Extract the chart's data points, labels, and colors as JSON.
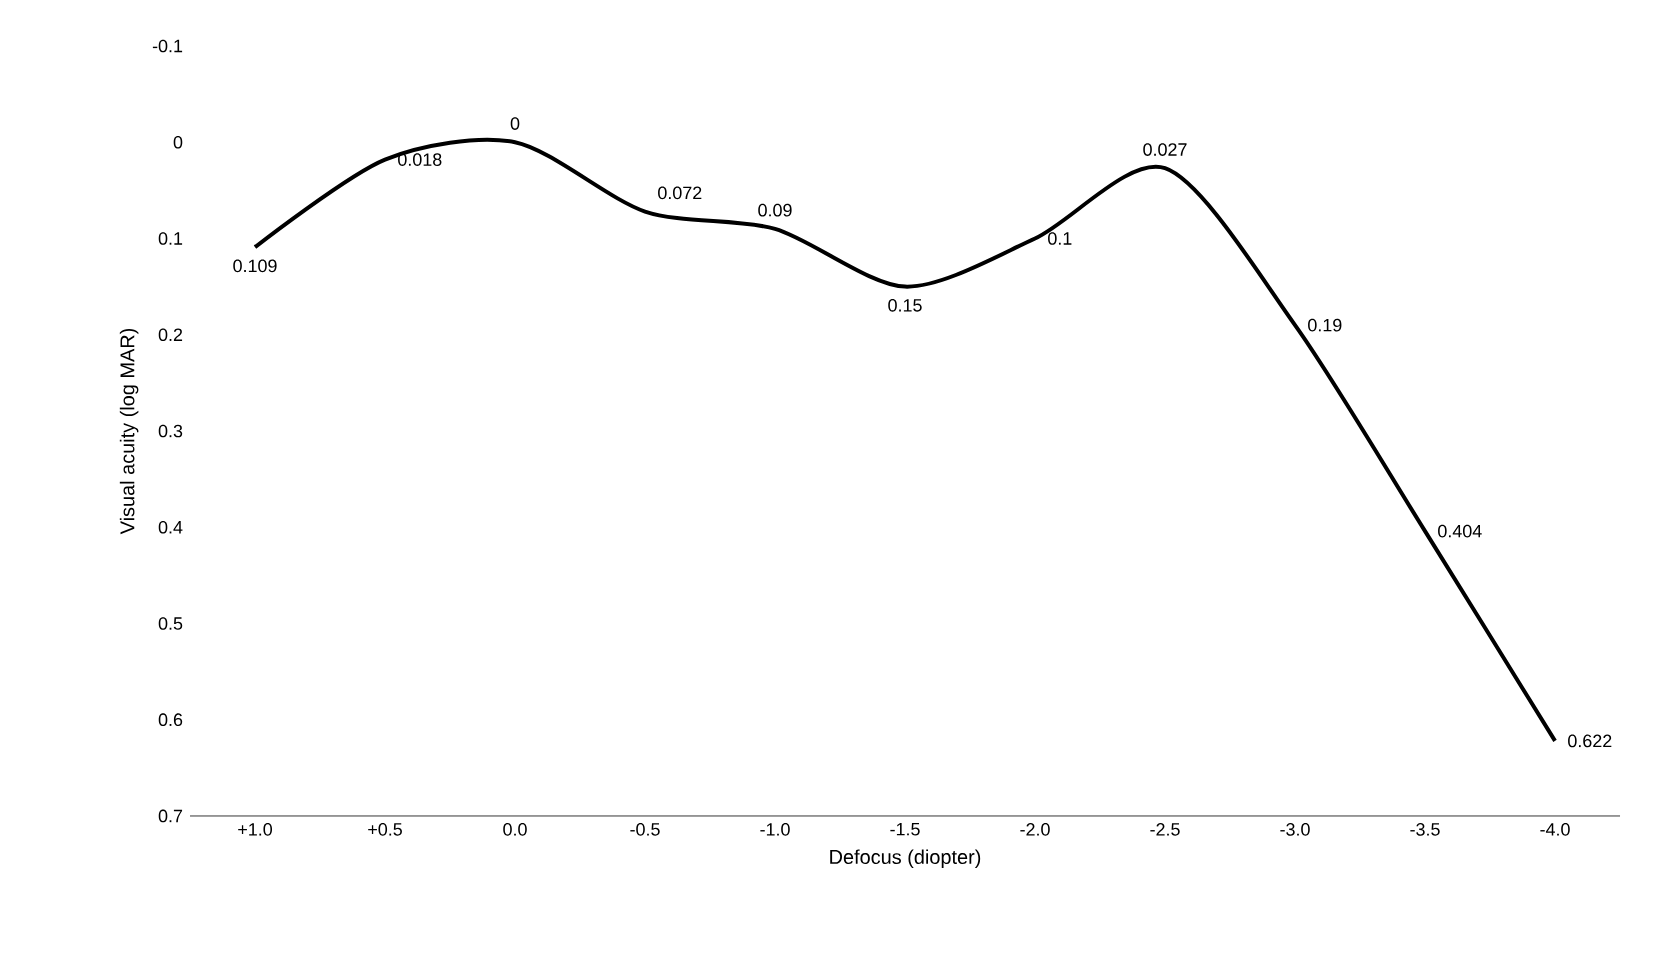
{
  "chart_data": {
    "type": "line",
    "xlabel": "Defocus (diopter)",
    "ylabel": "Visual acuity (log MAR)",
    "categories": [
      "+1.0",
      "+0.5",
      "0.0",
      "-0.5",
      "-1.0",
      "-1.5",
      "-2.0",
      "-2.5",
      "-3.0",
      "-3.5",
      "-4.0"
    ],
    "values": [
      0.109,
      0.018,
      0,
      0.072,
      0.09,
      0.15,
      0.1,
      0.027,
      0.19,
      0.404,
      0.622
    ],
    "color": "#000000",
    "ylim": [
      0.7,
      -0.1
    ],
    "yticks": [
      -0.1,
      0,
      0.1,
      0.2,
      0.3,
      0.4,
      0.5,
      0.6,
      0.7
    ],
    "data_labels": true,
    "marker": "none",
    "line_style": "solid"
  }
}
